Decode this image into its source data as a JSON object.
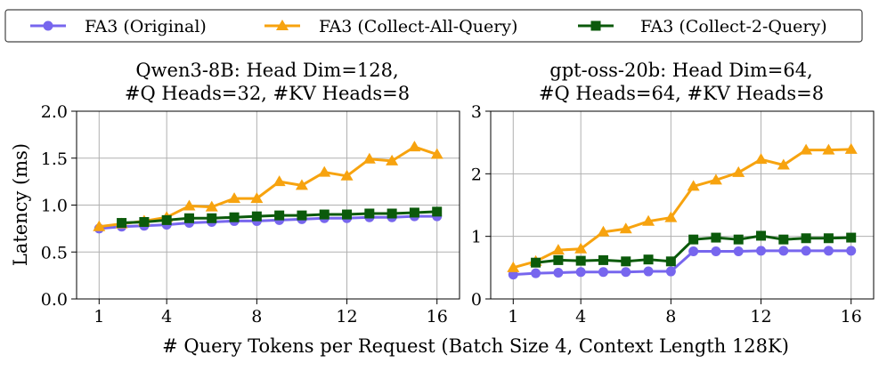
{
  "legend": {
    "placement": "top-center",
    "entries": [
      {
        "label": "FA3 (Original)",
        "color": "#7766ee",
        "marker": "circle"
      },
      {
        "label": "FA3 (Collect-All-Query)",
        "color": "#f7a30f",
        "marker": "triangle"
      },
      {
        "label": "FA3 (Collect-2-Query)",
        "color": "#0b5a0b",
        "marker": "square"
      }
    ]
  },
  "shared_xlabel": "# Query Tokens per Request (Batch Size 4, Context Length 128K)",
  "chart_data": [
    {
      "type": "line",
      "title_lines": [
        "Qwen3-8B: Head Dim=128,",
        "#Q Heads=32, #KV Heads=8"
      ],
      "xlabel": "",
      "ylabel": "Latency (ms)",
      "xlim": [
        0.0,
        17.0
      ],
      "ylim": [
        0,
        2.0
      ],
      "xticks": [
        1,
        4,
        8,
        12,
        16
      ],
      "xtick_labels": [
        "1",
        "4",
        "8",
        "12",
        "16"
      ],
      "yticks": [
        0,
        0.5,
        1.0,
        1.5,
        2.0
      ],
      "ytick_labels": [
        "0.0",
        "0.5",
        "1.0",
        "1.5",
        "2.0"
      ],
      "grid": true,
      "series": [
        {
          "name": "FA3 (Original)",
          "x": [
            1,
            2,
            3,
            4,
            5,
            6,
            7,
            8,
            9,
            10,
            11,
            12,
            13,
            14,
            15,
            16
          ],
          "values": [
            0.75,
            0.77,
            0.78,
            0.79,
            0.81,
            0.82,
            0.83,
            0.83,
            0.84,
            0.85,
            0.86,
            0.86,
            0.87,
            0.87,
            0.88,
            0.88
          ]
        },
        {
          "name": "FA3 (Collect-All-Query)",
          "x": [
            1,
            2,
            3,
            4,
            5,
            6,
            7,
            8,
            9,
            10,
            11,
            12,
            13,
            14,
            15,
            16
          ],
          "values": [
            0.77,
            0.8,
            0.83,
            0.87,
            0.99,
            0.98,
            1.07,
            1.07,
            1.25,
            1.21,
            1.35,
            1.31,
            1.49,
            1.47,
            1.62,
            1.54
          ]
        },
        {
          "name": "FA3 (Collect-2-Query)",
          "x": [
            2,
            3,
            4,
            5,
            6,
            7,
            8,
            9,
            10,
            11,
            12,
            13,
            14,
            15,
            16
          ],
          "values": [
            0.81,
            0.82,
            0.84,
            0.86,
            0.86,
            0.87,
            0.88,
            0.89,
            0.89,
            0.9,
            0.9,
            0.91,
            0.91,
            0.92,
            0.93
          ]
        }
      ]
    },
    {
      "type": "line",
      "title_lines": [
        "gpt-oss-20b: Head Dim=64,",
        "#Q Heads=64, #KV Heads=8"
      ],
      "xlabel": "",
      "ylabel": "",
      "xlim": [
        0.0,
        17.0
      ],
      "ylim": [
        0,
        3
      ],
      "xticks": [
        1,
        4,
        8,
        12,
        16
      ],
      "xtick_labels": [
        "1",
        "4",
        "8",
        "12",
        "16"
      ],
      "yticks": [
        0,
        1,
        2,
        3
      ],
      "ytick_labels": [
        "0",
        "1",
        "2",
        "3"
      ],
      "grid": true,
      "series": [
        {
          "name": "FA3 (Original)",
          "x": [
            1,
            2,
            3,
            4,
            5,
            6,
            7,
            8,
            9,
            10,
            11,
            12,
            13,
            14,
            15,
            16
          ],
          "values": [
            0.39,
            0.41,
            0.42,
            0.43,
            0.43,
            0.43,
            0.44,
            0.44,
            0.76,
            0.76,
            0.76,
            0.77,
            0.77,
            0.77,
            0.77,
            0.77
          ]
        },
        {
          "name": "FA3 (Collect-All-Query)",
          "x": [
            1,
            2,
            3,
            4,
            5,
            6,
            7,
            8,
            9,
            10,
            11,
            12,
            13,
            14,
            15,
            16
          ],
          "values": [
            0.5,
            0.6,
            0.78,
            0.8,
            1.07,
            1.12,
            1.24,
            1.3,
            1.8,
            1.9,
            2.02,
            2.23,
            2.14,
            2.38,
            2.38,
            2.39
          ]
        },
        {
          "name": "FA3 (Collect-2-Query)",
          "x": [
            2,
            3,
            4,
            5,
            6,
            7,
            8,
            9,
            10,
            11,
            12,
            13,
            14,
            15,
            16
          ],
          "values": [
            0.58,
            0.62,
            0.61,
            0.62,
            0.6,
            0.63,
            0.6,
            0.95,
            0.98,
            0.95,
            1.01,
            0.95,
            0.97,
            0.97,
            0.98
          ]
        }
      ]
    }
  ]
}
